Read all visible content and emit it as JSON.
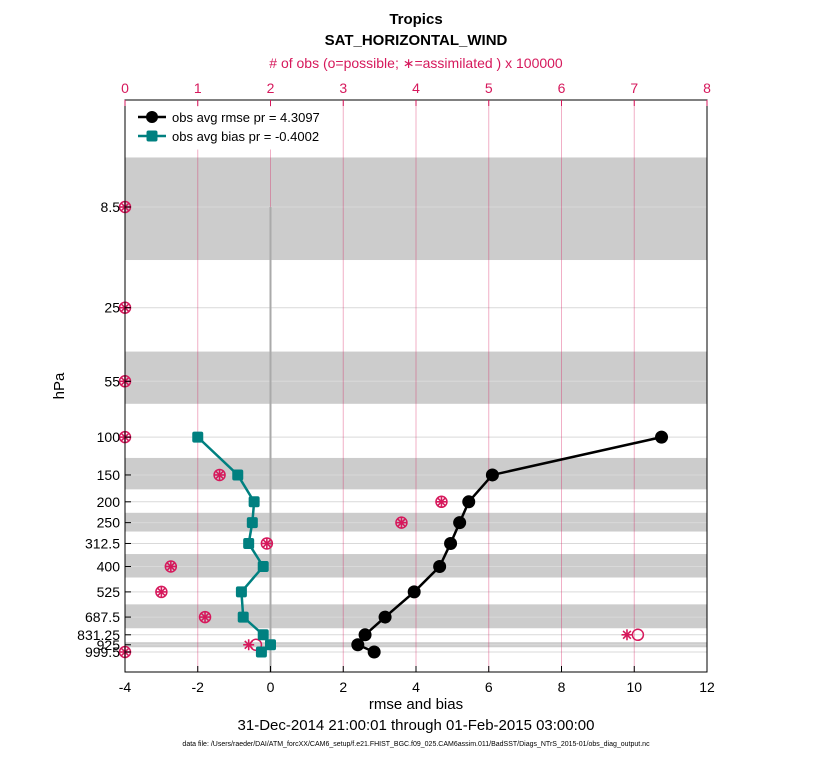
{
  "chart_data": {
    "type": "line",
    "title": "Tropics",
    "subtitle": "SAT_HORIZONTAL_WIND",
    "top_axis_label": "# of obs (o=possible; ∗=assimilated ) x 100000",
    "xlabel": "rmse and bias",
    "ylabel": "hPa",
    "date_range": "31-Dec-2014 21:00:01 through 01-Feb-2015 03:00:00",
    "footnote": "data file: /Users/raeder/DAI/ATM_forcXX/CAM6_setup/f.e21.FHIST_BGC.f09_025.CAM6assim.011/BadSST/Diags_NTrS_2015-01/obs_diag_output.nc",
    "xlim": [
      -4,
      12
    ],
    "x_ticks": [
      -4,
      -2,
      0,
      2,
      4,
      6,
      8,
      10,
      12
    ],
    "top_xlim": [
      0,
      8
    ],
    "top_ticks": [
      0,
      1,
      2,
      3,
      4,
      5,
      6,
      7,
      8
    ],
    "pressure_levels": [
      8.5,
      25,
      55,
      100,
      150,
      200,
      250,
      312.5,
      400,
      525,
      687.5,
      831.25,
      925,
      999.5
    ],
    "level_labels": [
      "8.5",
      "25",
      "55",
      "100",
      "150",
      "200",
      "250",
      "312.5",
      "400",
      "525",
      "687.5",
      "831.25",
      "925",
      "999.5"
    ],
    "shaded_bands": [
      [
        5,
        15
      ],
      [
        40,
        70
      ],
      [
        125,
        175
      ],
      [
        225,
        275
      ],
      [
        350,
        450
      ],
      [
        600,
        775
      ],
      [
        900,
        950
      ]
    ],
    "series": [
      {
        "name": "obs avg rmse pr = 4.3097",
        "color": "#000000",
        "marker": "circle",
        "pressure": [
          100,
          150,
          200,
          250,
          312.5,
          400,
          525,
          687.5,
          831.25,
          925,
          999.5
        ],
        "values": [
          10.75,
          6.1,
          5.45,
          5.2,
          4.95,
          4.65,
          3.95,
          3.15,
          2.6,
          2.4,
          2.85
        ]
      },
      {
        "name": "obs avg bias pr = -0.4002",
        "color": "#008080",
        "marker": "square",
        "pressure": [
          100,
          150,
          200,
          250,
          312.5,
          400,
          525,
          687.5,
          831.25,
          925,
          999.5
        ],
        "values": [
          -2.0,
          -0.9,
          -0.45,
          -0.5,
          -0.6,
          -0.2,
          -0.8,
          -0.75,
          -0.2,
          0.0,
          -0.25
        ]
      }
    ],
    "obs_counts": {
      "color": "#D6195C",
      "pressure": [
        8.5,
        25,
        55,
        100,
        150,
        200,
        250,
        312.5,
        400,
        525,
        687.5,
        831.25,
        925,
        999.5
      ],
      "possible": [
        0.0,
        0.0,
        0.0,
        0.0,
        1.3,
        4.35,
        3.8,
        1.95,
        0.63,
        0.5,
        1.1,
        7.05,
        1.8,
        0.0
      ],
      "assimilated": [
        0.0,
        0.0,
        0.0,
        0.0,
        1.3,
        4.35,
        3.8,
        1.95,
        0.63,
        0.5,
        1.1,
        6.9,
        1.7,
        0.0
      ]
    },
    "zero_line_x": 0
  }
}
